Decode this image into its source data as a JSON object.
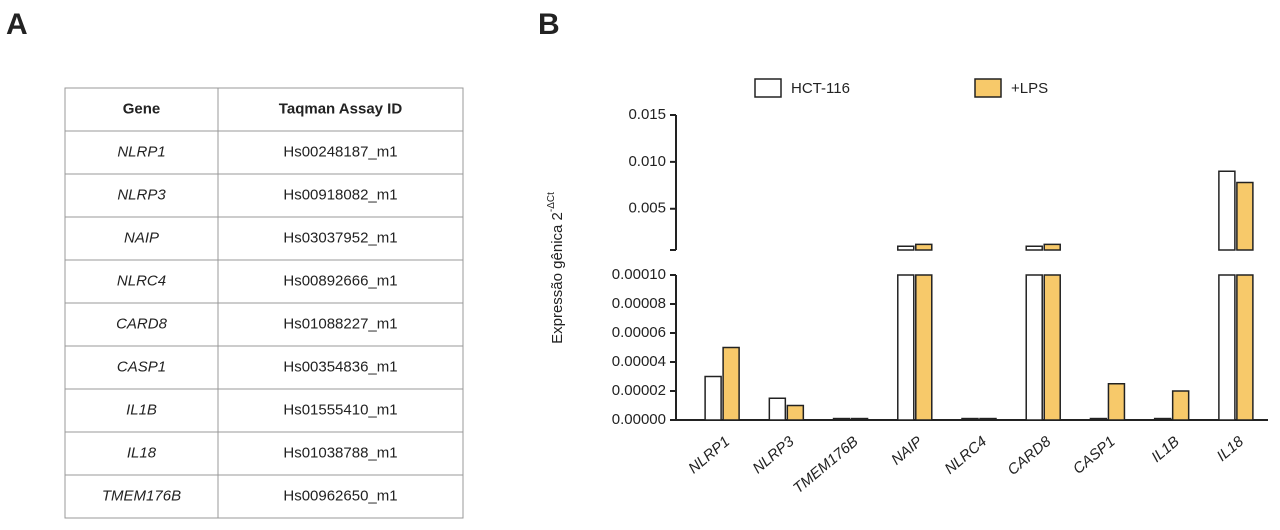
{
  "panels": [
    "A",
    "B"
  ],
  "table": {
    "header": [
      "Gene",
      "Taqman Assay ID"
    ],
    "rows": [
      [
        "NLRP1",
        "Hs00248187_m1"
      ],
      [
        "NLRP3",
        "Hs00918082_m1"
      ],
      [
        "NAIP",
        "Hs03037952_m1"
      ],
      [
        "NLRC4",
        "Hs00892666_m1"
      ],
      [
        "CARD8",
        "Hs01088227_m1"
      ],
      [
        "CASP1",
        "Hs00354836_m1"
      ],
      [
        "IL1B",
        "Hs01555410_m1"
      ],
      [
        "IL18",
        "Hs01038788_m1"
      ],
      [
        "TMEM176B",
        "Hs00962650_m1"
      ]
    ]
  },
  "chart_data": {
    "type": "bar",
    "y_label": "Expressão gênica 2",
    "y_label_sup": "-ΔCt",
    "categories": [
      "NLRP1",
      "NLRP3",
      "TMEM176B",
      "NAIP",
      "NLRC4",
      "CARD8",
      "CASP1",
      "IL1B",
      "IL18"
    ],
    "series": [
      {
        "name": "HCT-116",
        "color": "#ffffff",
        "values": [
          3e-05,
          1.5e-05,
          1e-06,
          0.001,
          1e-06,
          0.001,
          1e-06,
          1e-06,
          0.009
        ]
      },
      {
        "name": "+LPS",
        "color": "#f7c96a",
        "values": [
          5e-05,
          1e-05,
          1e-06,
          0.0012,
          1e-06,
          0.0012,
          2.5e-05,
          2e-05,
          0.0078
        ]
      }
    ],
    "segments": [
      {
        "ylim": [
          0,
          0.0001
        ],
        "yticks": [
          {
            "value": 0,
            "label": "0.00000"
          },
          {
            "value": 2e-05,
            "label": "0.00002"
          },
          {
            "value": 4e-05,
            "label": "0.00004"
          },
          {
            "value": 6e-05,
            "label": "0.00006"
          },
          {
            "value": 8e-05,
            "label": "0.00008"
          },
          {
            "value": 0.0001,
            "label": "0.00010"
          }
        ]
      },
      {
        "ylim": [
          0.0006,
          0.015
        ],
        "yticks": [
          0.005,
          {
            "value": 0.01,
            "label": "0.010"
          },
          0.015
        ]
      }
    ],
    "legend": "top"
  }
}
